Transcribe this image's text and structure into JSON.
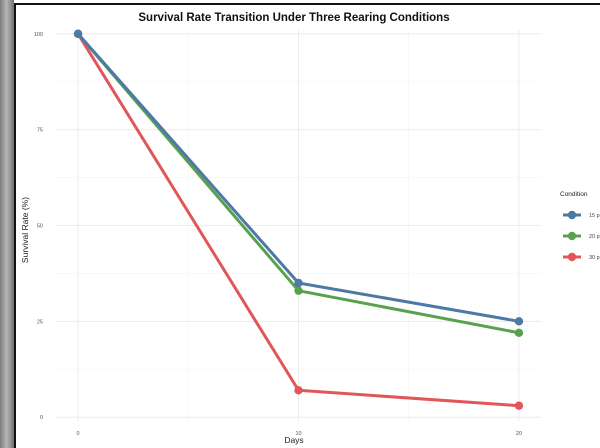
{
  "chart_data": {
    "type": "line",
    "title": "Survival Rate Transition Under Three Rearing Conditions",
    "xlabel": "Days",
    "ylabel": "Survival Rate (%)",
    "x": [
      0,
      10,
      20
    ],
    "xticks": [
      0,
      10,
      20
    ],
    "yticks": [
      0,
      25,
      50,
      75,
      100
    ],
    "xlim": [
      -1,
      21
    ],
    "ylim": [
      -1,
      101
    ],
    "grid": true,
    "legend_title": "Condition",
    "legend_position": "right",
    "series": [
      {
        "name": "15 p",
        "color": "#4e79a7",
        "values": [
          100,
          35,
          25
        ]
      },
      {
        "name": "20 p",
        "color": "#59a14f",
        "values": [
          100,
          33,
          22
        ]
      },
      {
        "name": "30 p",
        "color": "#e15759",
        "values": [
          100,
          7,
          3
        ]
      }
    ]
  }
}
